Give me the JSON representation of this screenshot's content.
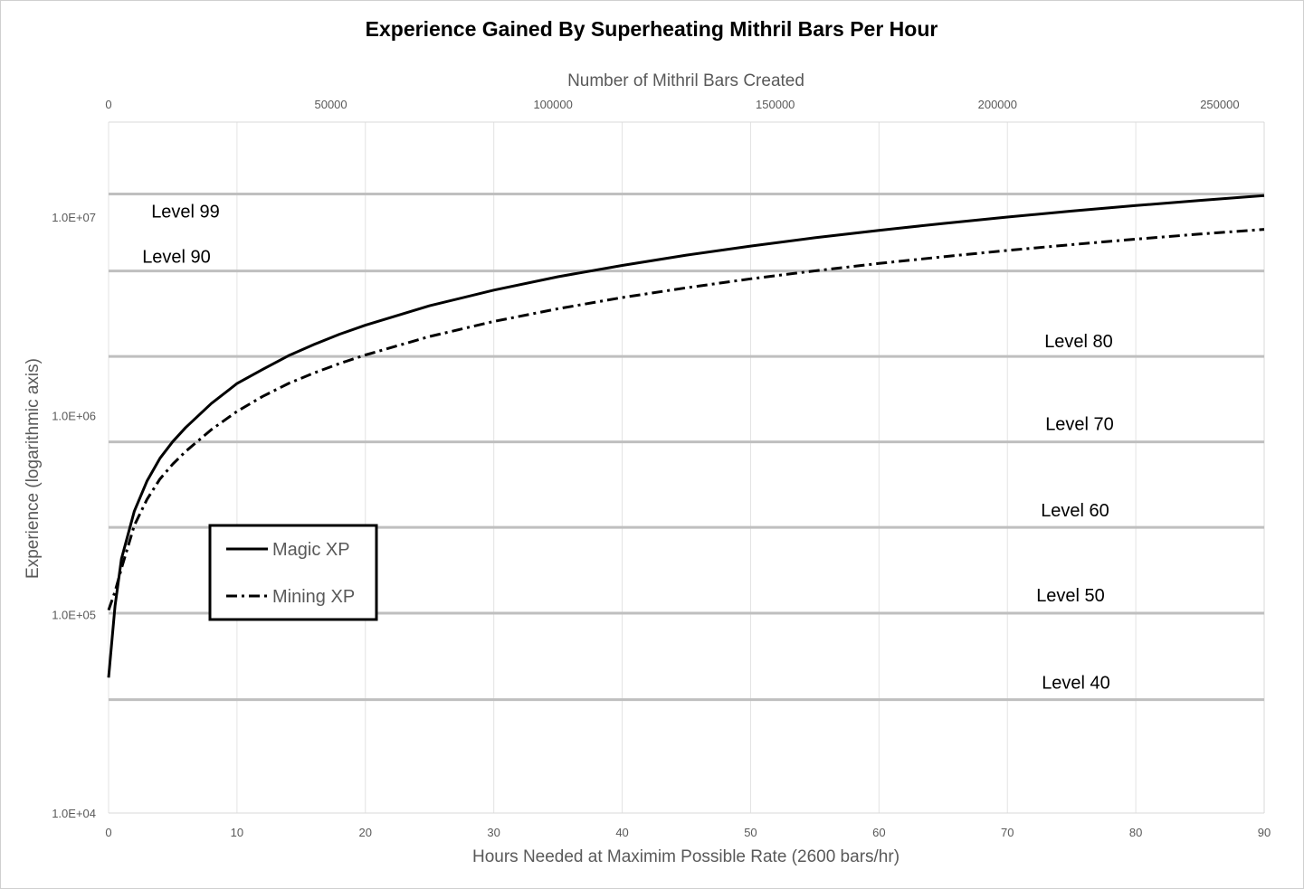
{
  "chart_data": {
    "type": "line",
    "title": "Experience Gained By Superheating Mithril Bars Per Hour",
    "xlabel": "Hours Needed at Maximim Possible Rate (2600 bars/hr)",
    "x2label": "Number of Mithril Bars Created",
    "ylabel": "Experience (logarithmic axis)",
    "yscale": "log",
    "xlim": [
      0,
      90
    ],
    "x2lim": [
      0,
      260000
    ],
    "ylim": [
      10000,
      30000000
    ],
    "x_ticks": [
      "0",
      "10",
      "20",
      "30",
      "40",
      "50",
      "60",
      "70",
      "80",
      "90"
    ],
    "x2_ticks": [
      "0",
      "50000",
      "100000",
      "150000",
      "200000",
      "250000"
    ],
    "y_ticks": [
      {
        "value": 10000,
        "label": "1.0E+04"
      },
      {
        "value": 100000,
        "label": "1.0E+05"
      },
      {
        "value": 1000000,
        "label": "1.0E+06"
      },
      {
        "value": 10000000,
        "label": "1.0E+07"
      }
    ],
    "grid": true,
    "legend_position": "middle-left",
    "levels": [
      {
        "label": "Level 99",
        "xp": 13034431
      },
      {
        "label": "Level 90",
        "xp": 5346332
      },
      {
        "label": "Level 80",
        "xp": 1986068
      },
      {
        "label": "Level 70",
        "xp": 737627
      },
      {
        "label": "Level 60",
        "xp": 273742
      },
      {
        "label": "Level 50",
        "xp": 101333
      },
      {
        "label": "Level 40",
        "xp": 37224
      }
    ],
    "series": [
      {
        "name": "Magic XP",
        "style": "solid",
        "x": [
          0,
          0.5,
          1,
          2,
          3,
          4,
          5,
          6,
          8,
          10,
          12,
          14,
          16,
          18,
          20,
          25,
          30,
          35,
          40,
          45,
          50,
          55,
          60,
          65,
          70,
          75,
          80,
          85,
          90
        ],
        "y": [
          48000,
          110000,
          190000,
          330000,
          470000,
          610000,
          740000,
          870000,
          1150000,
          1450000,
          1710000,
          2000000,
          2280000,
          2570000,
          2850000,
          3570000,
          4280000,
          5000000,
          5700000,
          6420000,
          7130000,
          7850000,
          8560000,
          9270000,
          9980000,
          10700000,
          11400000,
          12100000,
          12800000
        ]
      },
      {
        "name": "Mining XP",
        "style": "dash-dot",
        "x": [
          0,
          0.5,
          1,
          2,
          3,
          4,
          5,
          6,
          8,
          10,
          12,
          14,
          16,
          18,
          20,
          25,
          30,
          35,
          40,
          45,
          50,
          55,
          60,
          65,
          70,
          75,
          80,
          85,
          90
        ],
        "y": [
          105000,
          130000,
          170000,
          280000,
          380000,
          480000,
          570000,
          660000,
          850000,
          1050000,
          1250000,
          1450000,
          1640000,
          1830000,
          2020000,
          2500000,
          2980000,
          3450000,
          3930000,
          4400000,
          4880000,
          5350000,
          5830000,
          6300000,
          6780000,
          7250000,
          7730000,
          8200000,
          8660000
        ]
      }
    ]
  }
}
